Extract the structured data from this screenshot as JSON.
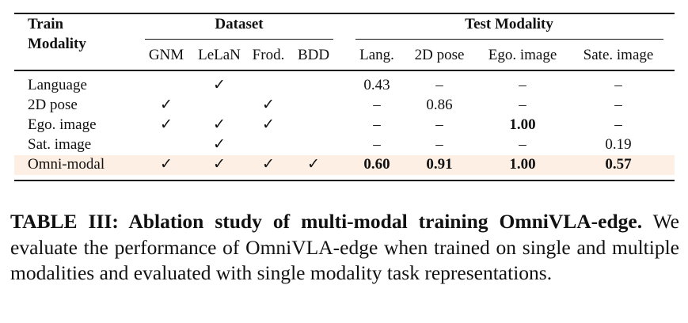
{
  "table": {
    "header": {
      "train_modality": [
        "Train",
        "Modality"
      ],
      "dataset_group": "Dataset",
      "test_group": "Test Modality",
      "dataset_cols": [
        "GNM",
        "LeLaN",
        "Frod.",
        "BDD"
      ],
      "test_cols": [
        "Lang.",
        "2D pose",
        "Ego. image",
        "Sate. image"
      ]
    },
    "rows": [
      {
        "name": "Language",
        "datasets": [
          "",
          "✓",
          "",
          ""
        ],
        "scores": [
          "0.43",
          "–",
          "–",
          "–"
        ],
        "bold": [
          false,
          false,
          false,
          false
        ]
      },
      {
        "name": "2D pose",
        "datasets": [
          "✓",
          "",
          "✓",
          ""
        ],
        "scores": [
          "–",
          "0.86",
          "–",
          "–"
        ],
        "bold": [
          false,
          false,
          false,
          false
        ]
      },
      {
        "name": "Ego. image",
        "datasets": [
          "✓",
          "✓",
          "✓",
          ""
        ],
        "scores": [
          "–",
          "–",
          "1.00",
          "–"
        ],
        "bold": [
          false,
          false,
          true,
          false
        ]
      },
      {
        "name": "Sat. image",
        "datasets": [
          "",
          "✓",
          "",
          ""
        ],
        "scores": [
          "–",
          "–",
          "–",
          "0.19"
        ],
        "bold": [
          false,
          false,
          false,
          false
        ]
      },
      {
        "name": "Omni-modal",
        "datasets": [
          "✓",
          "✓",
          "✓",
          "✓"
        ],
        "scores": [
          "0.60",
          "0.91",
          "1.00",
          "0.57"
        ],
        "bold": [
          true,
          true,
          true,
          true
        ]
      }
    ],
    "highlight_color": "#fdefe4"
  },
  "caption": {
    "label": "TABLE III: Ablation study of multi-modal training OmniVLA-edge.",
    "text": " We evaluate the performance of OmniVLA-edge when trained on single and multiple modalities and evaluated with single modality task representations."
  }
}
